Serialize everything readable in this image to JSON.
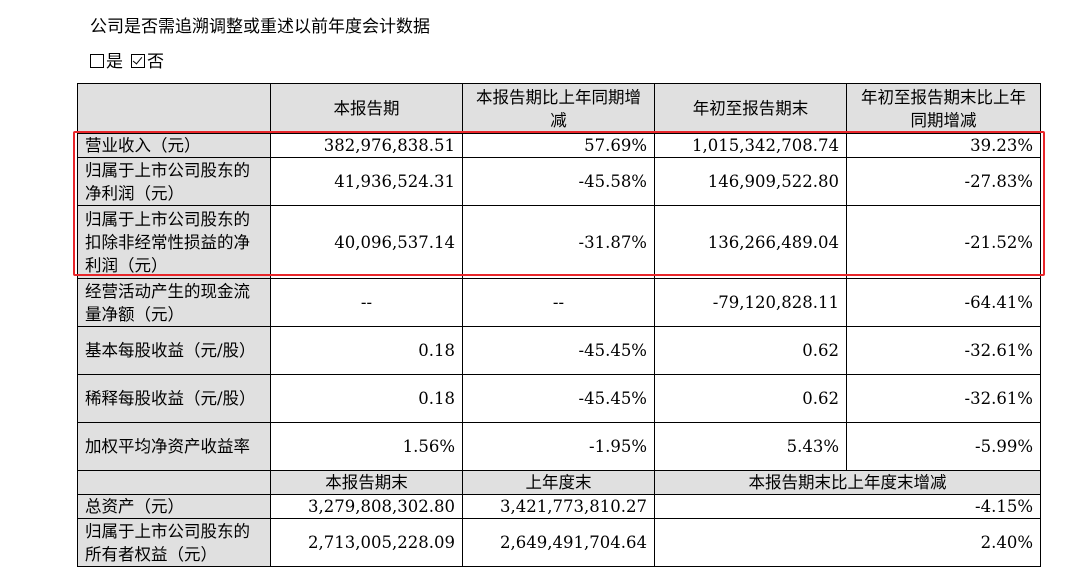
{
  "heading": "公司是否需追溯调整或重述以前年度会计数据",
  "options": {
    "yes": "是",
    "no": "否"
  },
  "table1": {
    "headers": [
      "本报告期",
      "本报告期比上年同期增减",
      "年初至报告期末",
      "年初至报告期末比上年同期增减"
    ],
    "rows": [
      {
        "label": "营业收入（元）",
        "values": [
          "382,976,838.51",
          "57.69%",
          "1,015,342,708.74",
          "39.23%"
        ]
      },
      {
        "label": "归属于上市公司股东的净利润（元）",
        "values": [
          "41,936,524.31",
          "-45.58%",
          "146,909,522.80",
          "-27.83%"
        ]
      },
      {
        "label": "归属于上市公司股东的扣除非经常性损益的净利润（元）",
        "values": [
          "40,096,537.14",
          "-31.87%",
          "136,266,489.04",
          "-21.52%"
        ]
      },
      {
        "label": "经营活动产生的现金流量净额（元）",
        "values": [
          "--",
          "--",
          "-79,120,828.11",
          "-64.41%"
        ]
      },
      {
        "label": "基本每股收益（元/股）",
        "values": [
          "0.18",
          "-45.45%",
          "0.62",
          "-32.61%"
        ]
      },
      {
        "label": "稀释每股收益（元/股）",
        "values": [
          "0.18",
          "-45.45%",
          "0.62",
          "-32.61%"
        ]
      },
      {
        "label": "加权平均净资产收益率",
        "values": [
          "1.56%",
          "-1.95%",
          "5.43%",
          "-5.99%"
        ]
      }
    ]
  },
  "table2": {
    "headers": [
      "本报告期末",
      "上年度末",
      "本报告期末比上年度末增减"
    ],
    "rows": [
      {
        "label": "总资产（元）",
        "values": [
          "3,279,808,302.80",
          "3,421,773,810.27",
          "-4.15%"
        ]
      },
      {
        "label": "归属于上市公司股东的所有者权益（元）",
        "values": [
          "2,713,005,228.09",
          "2,649,491,704.64",
          "2.40%"
        ]
      }
    ]
  },
  "colors": {
    "label_bg": "#e0e0e0",
    "highlight_border": "#e8262a"
  }
}
